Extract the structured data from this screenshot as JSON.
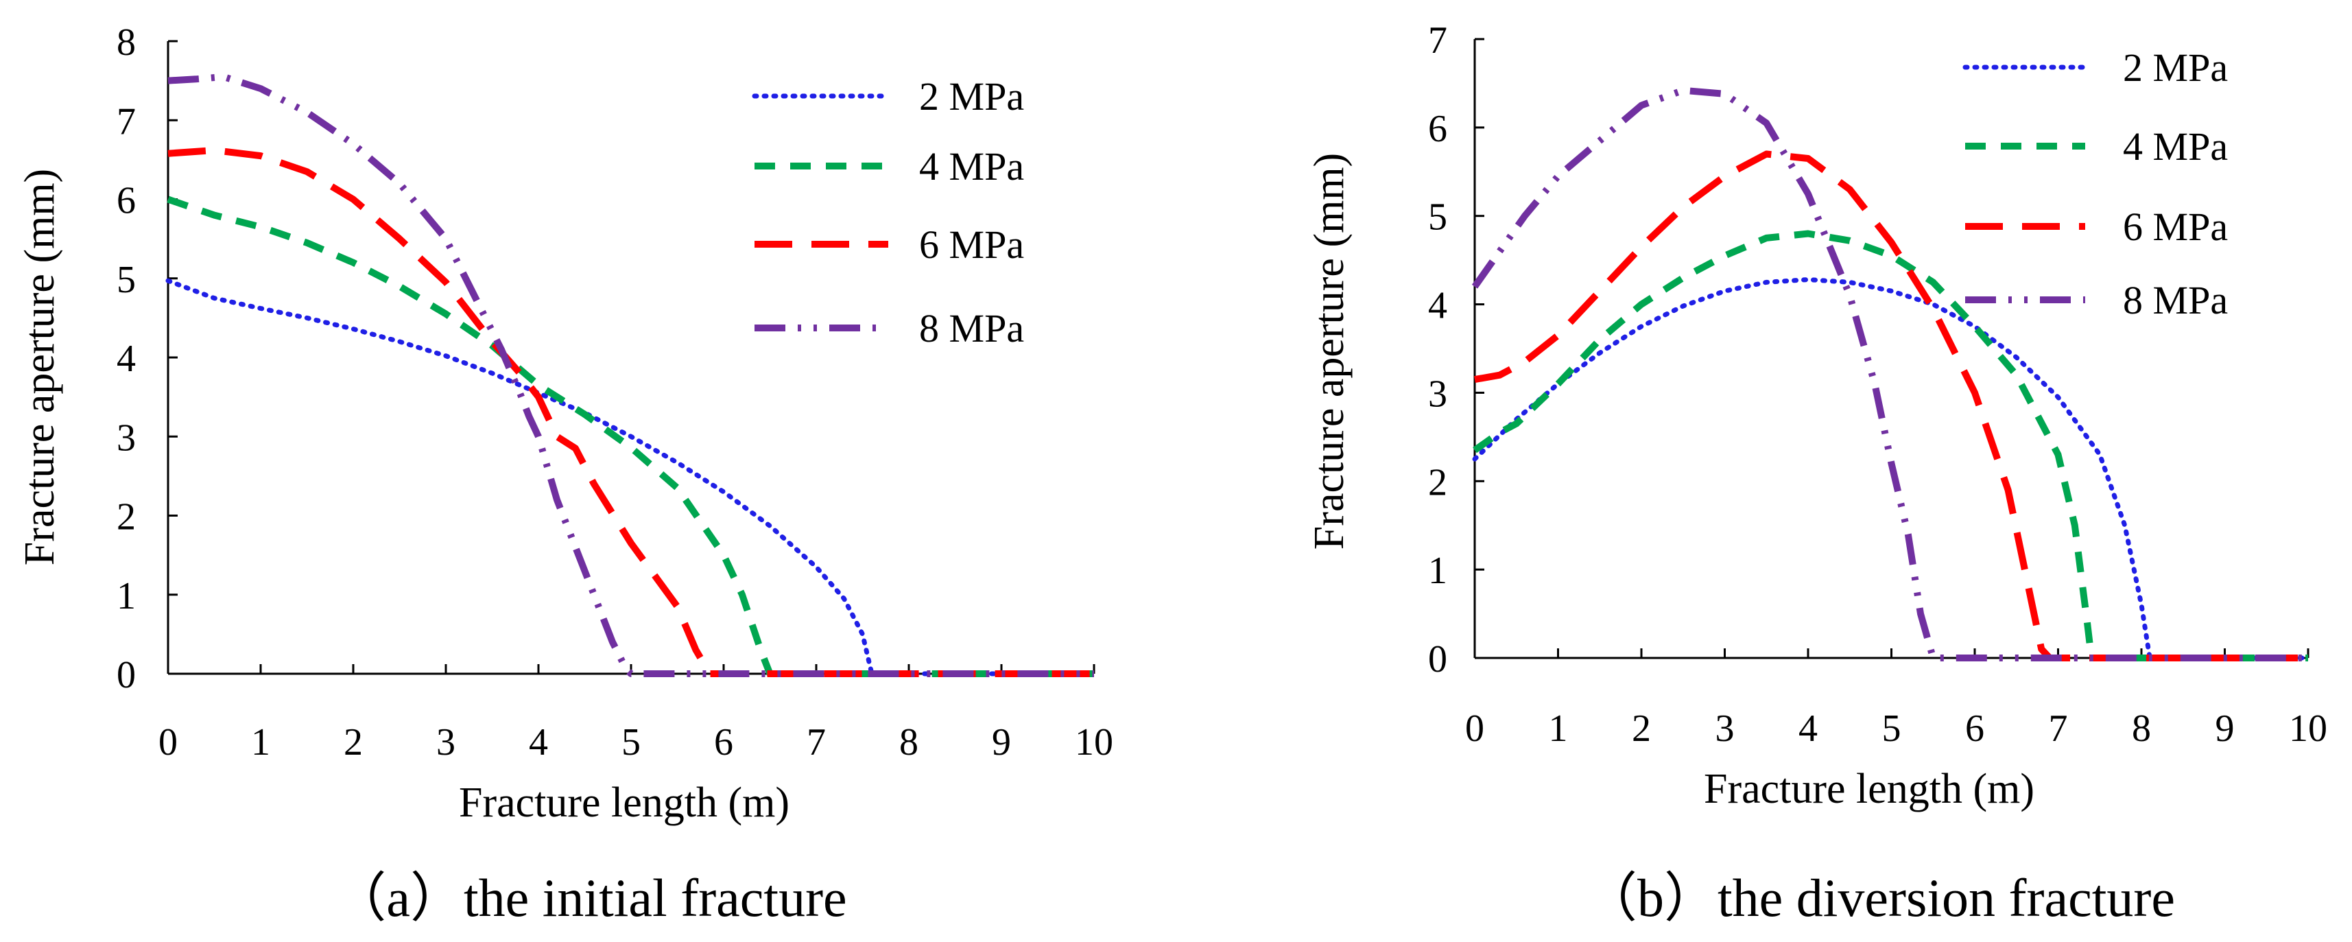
{
  "chart_data": [
    {
      "type": "line",
      "caption": "（a）the initial fracture",
      "xlabel": "Fracture length (m)",
      "ylabel": "Fracture aperture (mm)",
      "xlim": [
        0,
        10
      ],
      "ylim": [
        0,
        8
      ],
      "xticks": [
        0,
        1,
        2,
        3,
        4,
        5,
        6,
        7,
        8,
        9,
        10
      ],
      "yticks": [
        0,
        1,
        2,
        3,
        4,
        5,
        6,
        7,
        8
      ],
      "legend_position": "top-right",
      "series": [
        {
          "name": "2 MPa",
          "color": "#1f1fe6",
          "dash": "dotted",
          "x": [
            0,
            0.5,
            1,
            1.5,
            2,
            2.5,
            3,
            3.5,
            4,
            4.5,
            5,
            5.5,
            6,
            6.5,
            7,
            7.3,
            7.5,
            7.6,
            8,
            10
          ],
          "y": [
            4.97,
            4.75,
            4.62,
            4.5,
            4.36,
            4.2,
            4.02,
            3.8,
            3.55,
            3.3,
            3.0,
            2.67,
            2.3,
            1.87,
            1.35,
            0.95,
            0.5,
            0,
            0,
            0
          ]
        },
        {
          "name": "4 MPa",
          "color": "#00a650",
          "dash": "dashed",
          "x": [
            0,
            0.5,
            1,
            1.5,
            2,
            2.5,
            3,
            3.5,
            4,
            4.5,
            5,
            5.5,
            6,
            6.2,
            6.4,
            6.5,
            7,
            10
          ],
          "y": [
            6.0,
            5.8,
            5.65,
            5.45,
            5.2,
            4.9,
            4.55,
            4.15,
            3.65,
            3.28,
            2.86,
            2.35,
            1.5,
            1.0,
            0.3,
            0,
            0,
            0
          ]
        },
        {
          "name": "6 MPa",
          "color": "#ff0000",
          "dash": "long-dash",
          "x": [
            0,
            0.5,
            1,
            1.5,
            2,
            2.5,
            3,
            3.5,
            3.8,
            4,
            4.2,
            4.4,
            4.6,
            5,
            5.5,
            5.7,
            5.85,
            6,
            10
          ],
          "y": [
            6.58,
            6.62,
            6.55,
            6.35,
            6.0,
            5.5,
            4.95,
            4.2,
            3.8,
            3.5,
            3.0,
            2.85,
            2.4,
            1.65,
            0.85,
            0.3,
            0,
            0,
            0
          ]
        },
        {
          "name": "8 MPa",
          "color": "#7030a0",
          "dash": "dash-dot-dot",
          "x": [
            0,
            0.3,
            0.6,
            1,
            1.5,
            2,
            2.5,
            3,
            3.3,
            3.6,
            3.8,
            3.9,
            4.0,
            4.2,
            4.5,
            4.8,
            4.95,
            5.0,
            10
          ],
          "y": [
            7.5,
            7.52,
            7.55,
            7.4,
            7.1,
            6.7,
            6.2,
            5.5,
            4.8,
            4.1,
            3.55,
            3.25,
            3.0,
            2.2,
            1.3,
            0.4,
            0.05,
            0,
            0
          ]
        }
      ]
    },
    {
      "type": "line",
      "caption": "（b）the diversion fracture",
      "xlabel": "Fracture length (m)",
      "ylabel": "Fracture aperture (mm)",
      "xlim": [
        0,
        10
      ],
      "ylim": [
        0,
        7
      ],
      "xticks": [
        0,
        1,
        2,
        3,
        4,
        5,
        6,
        7,
        8,
        9,
        10
      ],
      "yticks": [
        0,
        1,
        2,
        3,
        4,
        5,
        6,
        7
      ],
      "legend_position": "top-right",
      "series": [
        {
          "name": "2 MPa",
          "color": "#1f1fe6",
          "dash": "dotted",
          "x": [
            0,
            0.5,
            1,
            1.5,
            2,
            2.5,
            3,
            3.5,
            4,
            4.5,
            5,
            5.5,
            6,
            6.5,
            7,
            7.5,
            7.8,
            8.0,
            8.1,
            10
          ],
          "y": [
            2.25,
            2.7,
            3.1,
            3.45,
            3.75,
            3.98,
            4.15,
            4.25,
            4.28,
            4.25,
            4.15,
            4.0,
            3.75,
            3.4,
            2.95,
            2.3,
            1.5,
            0.6,
            0,
            0
          ]
        },
        {
          "name": "4 MPa",
          "color": "#00a650",
          "dash": "dashed",
          "x": [
            0,
            0.3,
            0.5,
            1,
            1.5,
            2,
            2.5,
            3,
            3.5,
            4,
            4.5,
            5,
            5.5,
            6,
            6.5,
            7,
            7.2,
            7.35,
            7.4,
            10
          ],
          "y": [
            2.35,
            2.55,
            2.65,
            3.1,
            3.6,
            4.0,
            4.3,
            4.55,
            4.75,
            4.8,
            4.72,
            4.55,
            4.25,
            3.75,
            3.2,
            2.3,
            1.5,
            0.4,
            0,
            0
          ]
        },
        {
          "name": "6 MPa",
          "color": "#ff0000",
          "dash": "long-dash",
          "x": [
            0,
            0.3,
            0.6,
            1,
            1.5,
            2,
            2.5,
            3,
            3.5,
            4,
            4.5,
            5,
            5.5,
            6,
            6.4,
            6.6,
            6.8,
            6.9,
            10
          ],
          "y": [
            3.15,
            3.2,
            3.35,
            3.65,
            4.15,
            4.65,
            5.1,
            5.45,
            5.7,
            5.65,
            5.3,
            4.7,
            3.95,
            3.0,
            1.9,
            1.0,
            0.1,
            0,
            0
          ]
        },
        {
          "name": "8 MPa",
          "color": "#7030a0",
          "dash": "dash-dot-dot",
          "x": [
            0,
            0.3,
            0.6,
            1,
            1.5,
            2,
            2.5,
            3,
            3.5,
            4,
            4.5,
            4.8,
            5,
            5.2,
            5.35,
            5.5,
            10
          ],
          "y": [
            4.2,
            4.6,
            5.0,
            5.45,
            5.85,
            6.25,
            6.42,
            6.38,
            6.05,
            5.25,
            4.1,
            3.1,
            2.2,
            1.4,
            0.5,
            0,
            0
          ]
        }
      ]
    }
  ]
}
